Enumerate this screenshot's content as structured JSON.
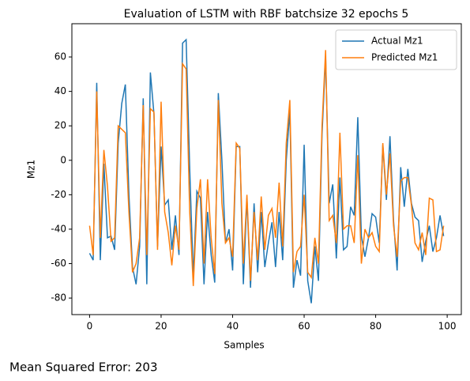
{
  "chart_data": {
    "type": "line",
    "title": "Evaluation of LSTM with RBF batchsize 32 epochs 5",
    "x_label": "Samples",
    "y_label": "Mz1",
    "annotation": "Mean Squared Error: 203",
    "x": [
      0,
      1,
      2,
      3,
      4,
      5,
      6,
      7,
      8,
      9,
      10,
      11,
      12,
      13,
      14,
      15,
      16,
      17,
      18,
      19,
      20,
      21,
      22,
      23,
      24,
      25,
      26,
      27,
      28,
      29,
      30,
      31,
      32,
      33,
      34,
      35,
      36,
      37,
      38,
      39,
      40,
      41,
      42,
      43,
      44,
      45,
      46,
      47,
      48,
      49,
      50,
      51,
      52,
      53,
      54,
      55,
      56,
      57,
      58,
      59,
      60,
      61,
      62,
      63,
      64,
      65,
      66,
      67,
      68,
      69,
      70,
      71,
      72,
      73,
      74,
      75,
      76,
      77,
      78,
      79,
      80,
      81,
      82,
      83,
      84,
      85,
      86,
      87,
      88,
      89,
      90,
      91,
      92,
      93,
      94,
      95,
      96,
      97,
      98,
      99
    ],
    "series": [
      {
        "name": "Actual Mz1",
        "color": "#1f77b4",
        "values": [
          -54,
          -58,
          45,
          -58,
          -2,
          -45,
          -44,
          -52,
          10,
          33,
          44,
          -20,
          -62,
          -72,
          -50,
          36,
          -72,
          51,
          27,
          -50,
          8,
          -26,
          -23,
          -52,
          -32,
          -55,
          68,
          70,
          -5,
          -68,
          -18,
          -22,
          -72,
          -30,
          -55,
          -71,
          39,
          0,
          -48,
          -40,
          -64,
          8,
          8,
          -72,
          -22,
          -74,
          -25,
          -65,
          -30,
          -62,
          -48,
          -36,
          -62,
          -30,
          -58,
          0,
          29,
          -74,
          -58,
          -67,
          9,
          -70,
          -83,
          -50,
          -70,
          15,
          60,
          -25,
          -14,
          -57,
          -10,
          -52,
          -50,
          -27,
          -32,
          25,
          -44,
          -56,
          -45,
          -31,
          -33,
          -48,
          9,
          -23,
          14,
          -35,
          -64,
          -4,
          -27,
          -5,
          -25,
          -33,
          -35,
          -59,
          -47,
          -38,
          -53,
          -45,
          -32,
          -44
        ]
      },
      {
        "name": "Predicted Mz1",
        "color": "#ff7f0e",
        "values": [
          -38,
          -55,
          40,
          -45,
          6,
          -15,
          -47,
          -45,
          20,
          18,
          16,
          -30,
          -65,
          -60,
          -45,
          32,
          -55,
          30,
          28,
          -52,
          34,
          -30,
          -42,
          -61,
          -38,
          -52,
          56,
          53,
          -30,
          -73,
          -28,
          -11,
          -60,
          -11,
          -45,
          -66,
          35,
          -25,
          -48,
          -45,
          -56,
          10,
          7,
          -60,
          -20,
          -70,
          -30,
          -58,
          -21,
          -52,
          -32,
          -28,
          -45,
          -13,
          -50,
          10,
          35,
          -65,
          -53,
          -50,
          -20,
          -65,
          -68,
          -45,
          -60,
          20,
          64,
          -35,
          -32,
          -48,
          16,
          -40,
          -38,
          -38,
          -48,
          3,
          -60,
          -40,
          -45,
          -42,
          -50,
          -53,
          10,
          -20,
          4,
          -38,
          -56,
          -12,
          -10,
          -10,
          -26,
          -48,
          -52,
          -42,
          -55,
          -22,
          -23,
          -53,
          -52,
          -38
        ]
      }
    ],
    "xlim": [
      -4.95,
      103.95
    ],
    "xticks": [
      0,
      20,
      40,
      60,
      80,
      100
    ],
    "ylim": [
      -89.6,
      79.3
    ],
    "yticks": [
      -80,
      -60,
      -40,
      -20,
      0,
      20,
      40,
      60
    ],
    "legend": "upper right"
  }
}
